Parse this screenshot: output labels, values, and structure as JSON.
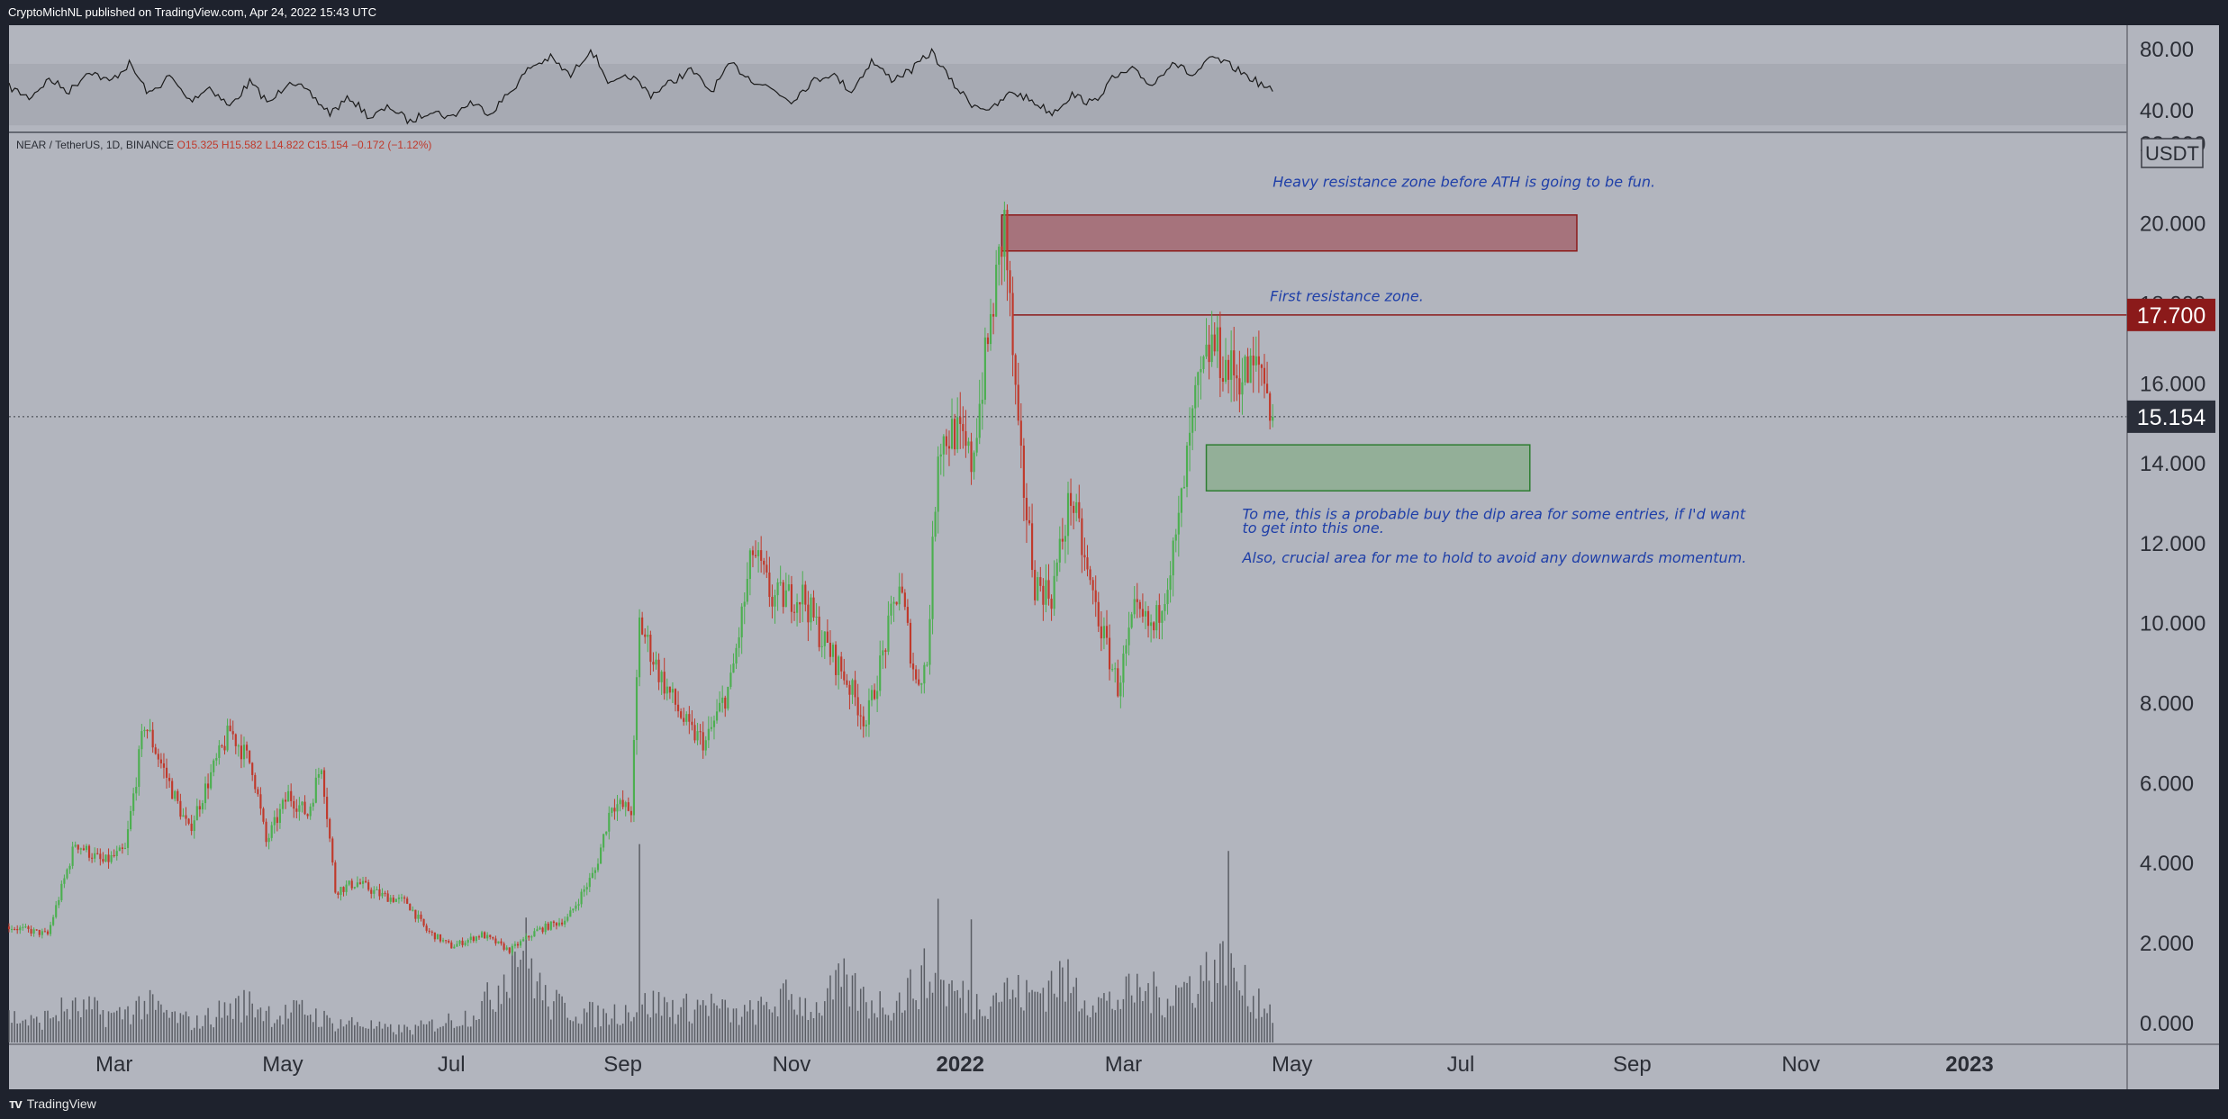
{
  "header": {
    "publish_line": "CryptoMichNL published on TradingView.com, Apr 24, 2022 15:43 UTC"
  },
  "footer": {
    "brand": "TradingView",
    "logo_icon": "tradingview-logo-icon"
  },
  "colors": {
    "background": "#b2b5be",
    "frame": "#1e222d",
    "up_candle": "#4caf50",
    "down_candle": "#c0392b",
    "resistance_zone": "#a25d66",
    "support_zone": "#8fae93",
    "annotation_text": "#1f3fa8",
    "price_badge_red": "#8b1a1a",
    "price_badge_dark": "#2a2e39"
  },
  "chart_data": {
    "type": "candlestick",
    "symbol_line": {
      "symbol": "NEAR / TetherUS, 1D, BINANCE",
      "open": "O15.325",
      "high": "H15.582",
      "low": "L14.822",
      "close": "C15.154",
      "change": "−0.172 (−1.12%)"
    },
    "currency_label": "USDT",
    "ylim": [
      -0.5,
      22.2
    ],
    "y_ticks": [
      "0.000",
      "2.000",
      "4.000",
      "6.000",
      "8.000",
      "10.000",
      "12.000",
      "14.000",
      "16.000",
      "18.000",
      "20.000",
      "22.000"
    ],
    "x_ticks": [
      {
        "label": "Mar",
        "date": "2021-03-01"
      },
      {
        "label": "May",
        "date": "2021-05-01"
      },
      {
        "label": "Jul",
        "date": "2021-07-01"
      },
      {
        "label": "Sep",
        "date": "2021-09-01"
      },
      {
        "label": "Nov",
        "date": "2021-11-01"
      },
      {
        "label": "2022",
        "date": "2022-01-01"
      },
      {
        "label": "Mar",
        "date": "2022-03-01"
      },
      {
        "label": "May",
        "date": "2022-05-01"
      },
      {
        "label": "Jul",
        "date": "2022-07-01"
      },
      {
        "label": "Sep",
        "date": "2022-09-01"
      },
      {
        "label": "Nov",
        "date": "2022-11-01"
      },
      {
        "label": "2023",
        "date": "2023-01-01"
      }
    ],
    "x_range": [
      "2021-01-22",
      "2023-02-27"
    ],
    "price_path": [
      [
        "2021-01-22",
        2.4
      ],
      [
        "2021-02-05",
        2.2
      ],
      [
        "2021-02-15",
        4.5
      ],
      [
        "2021-02-25",
        4.0
      ],
      [
        "2021-03-05",
        4.3
      ],
      [
        "2021-03-12",
        7.5
      ],
      [
        "2021-03-22",
        5.8
      ],
      [
        "2021-03-28",
        4.8
      ],
      [
        "2021-04-05",
        6.2
      ],
      [
        "2021-04-12",
        7.3
      ],
      [
        "2021-04-20",
        6.4
      ],
      [
        "2021-04-25",
        4.5
      ],
      [
        "2021-05-03",
        5.7
      ],
      [
        "2021-05-10",
        5.2
      ],
      [
        "2021-05-15",
        6.5
      ],
      [
        "2021-05-20",
        3.3
      ],
      [
        "2021-05-28",
        3.5
      ],
      [
        "2021-06-05",
        3.2
      ],
      [
        "2021-06-15",
        3.0
      ],
      [
        "2021-06-22",
        2.3
      ],
      [
        "2021-07-01",
        1.9
      ],
      [
        "2021-07-12",
        2.2
      ],
      [
        "2021-07-22",
        1.8
      ],
      [
        "2021-08-01",
        2.3
      ],
      [
        "2021-08-12",
        2.6
      ],
      [
        "2021-08-22",
        3.8
      ],
      [
        "2021-08-28",
        5.5
      ],
      [
        "2021-09-04",
        5.3
      ],
      [
        "2021-09-07",
        10.0
      ],
      [
        "2021-09-15",
        8.6
      ],
      [
        "2021-09-25",
        7.3
      ],
      [
        "2021-10-01",
        7.0
      ],
      [
        "2021-10-10",
        8.5
      ],
      [
        "2021-10-18",
        11.8
      ],
      [
        "2021-10-25",
        10.6
      ],
      [
        "2021-11-05",
        10.7
      ],
      [
        "2021-11-12",
        9.6
      ],
      [
        "2021-11-20",
        8.7
      ],
      [
        "2021-11-28",
        7.5
      ],
      [
        "2021-12-04",
        9.2
      ],
      [
        "2021-12-10",
        11.0
      ],
      [
        "2021-12-16",
        8.5
      ],
      [
        "2021-12-20",
        9.0
      ],
      [
        "2021-12-24",
        14.5
      ],
      [
        "2021-12-30",
        14.8
      ],
      [
        "2022-01-05",
        14.0
      ],
      [
        "2022-01-12",
        17.5
      ],
      [
        "2022-01-17",
        20.0
      ],
      [
        "2022-01-22",
        14.5
      ],
      [
        "2022-01-28",
        11.0
      ],
      [
        "2022-02-03",
        10.7
      ],
      [
        "2022-02-10",
        13.2
      ],
      [
        "2022-02-16",
        11.2
      ],
      [
        "2022-02-22",
        9.6
      ],
      [
        "2022-02-27",
        8.4
      ],
      [
        "2022-03-05",
        10.2
      ],
      [
        "2022-03-12",
        9.8
      ],
      [
        "2022-03-20",
        12.0
      ],
      [
        "2022-03-27",
        15.5
      ],
      [
        "2022-04-02",
        17.0
      ],
      [
        "2022-04-08",
        16.3
      ],
      [
        "2022-04-14",
        16.2
      ],
      [
        "2022-04-20",
        16.4
      ],
      [
        "2022-04-24",
        15.154
      ]
    ],
    "volume_path": [
      0.4,
      0.3,
      0.5,
      0.5,
      0.4,
      0.6,
      0.4,
      0.3,
      0.5,
      0.6,
      0.4,
      0.5,
      0.3,
      0.3,
      0.2,
      0.2,
      0.3,
      0.4,
      0.7,
      1.6,
      0.6,
      0.5,
      0.4,
      0.5,
      0.6,
      0.5,
      0.6,
      0.4,
      0.5,
      0.7,
      0.5,
      0.9,
      0.6,
      0.6,
      1.0,
      0.8,
      0.6,
      0.8,
      0.7,
      1.0,
      0.7,
      0.6,
      0.8,
      0.7,
      0.9,
      1.2,
      0.8,
      0.5
    ],
    "volume_peaks": [
      [
        "2021-09-07",
        2.9
      ],
      [
        "2021-12-24",
        2.1
      ],
      [
        "2022-01-05",
        1.8
      ],
      [
        "2022-04-08",
        2.8
      ]
    ],
    "resistance_zone": {
      "start": "2022-01-16",
      "end": "2022-08-12",
      "low": 19.3,
      "high": 20.2
    },
    "support_zone": {
      "start": "2022-03-31",
      "end": "2022-07-26",
      "low": 13.3,
      "high": 14.45
    },
    "resistance_line": {
      "start": "2022-01-20",
      "price": 17.7
    },
    "last_price": 15.154,
    "price_badges": [
      {
        "value": "17.700",
        "price": 17.7,
        "style": "red"
      },
      {
        "value": "15.154",
        "price": 15.154,
        "style": "dark"
      }
    ],
    "annotations": [
      {
        "text": "Heavy resistance zone before ATH is going to be fun.",
        "date": "2022-04-24",
        "price": 20.9
      },
      {
        "text": "First resistance zone.",
        "date": "2022-04-23",
        "price": 18.05
      },
      {
        "text": "To me, this is a probable buy the dip area for some entries, if I'd want",
        "date": "2022-04-13",
        "price": 12.6
      },
      {
        "text": "to get into this one.",
        "date": "2022-04-13",
        "price": 12.25
      },
      {
        "text": "Also, crucial area for me to hold to avoid any downwards momentum.",
        "date": "2022-04-13",
        "price": 11.5
      }
    ],
    "indicator": {
      "ylim": [
        26,
        94
      ],
      "y_ticks": [
        "40.00",
        "80.00"
      ],
      "band": [
        30,
        70
      ],
      "values": [
        55,
        48,
        60,
        52,
        66,
        58,
        70,
        50,
        62,
        46,
        55,
        42,
        58,
        44,
        60,
        50,
        38,
        48,
        35,
        42,
        32,
        40,
        35,
        45,
        38,
        52,
        68,
        74,
        62,
        80,
        56,
        62,
        50,
        58,
        66,
        52,
        70,
        60,
        54,
        46,
        58,
        64,
        52,
        72,
        60,
        66,
        78,
        58,
        44,
        40,
        52,
        46,
        38,
        50,
        44,
        60,
        66,
        56,
        72,
        62,
        74,
        68,
        60,
        52
      ]
    }
  }
}
